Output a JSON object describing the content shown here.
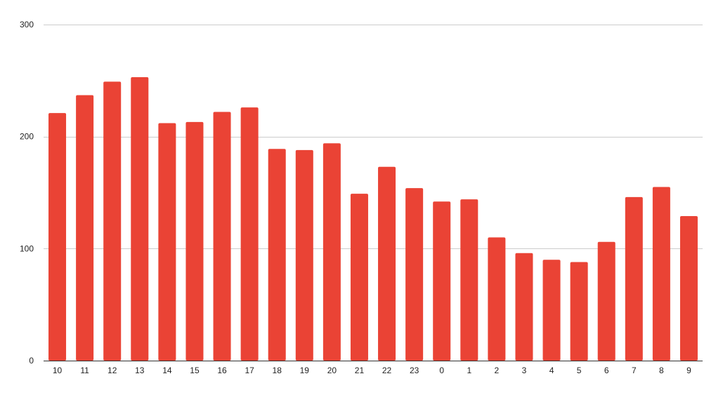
{
  "chart_data": {
    "type": "bar",
    "title": "",
    "xlabel": "",
    "ylabel": "",
    "categories": [
      "10",
      "11",
      "12",
      "13",
      "14",
      "15",
      "16",
      "17",
      "18",
      "19",
      "20",
      "21",
      "22",
      "23",
      "0",
      "1",
      "2",
      "3",
      "4",
      "5",
      "6",
      "7",
      "8",
      "9"
    ],
    "values": [
      221,
      237,
      249,
      253,
      212,
      213,
      222,
      226,
      189,
      188,
      194,
      149,
      173,
      154,
      142,
      144,
      110,
      96,
      90,
      88,
      106,
      146,
      155,
      129
    ],
    "ylim": [
      0,
      300
    ],
    "yticks": [
      "0",
      "100",
      "200",
      "300"
    ],
    "grid": true,
    "legend": "none",
    "bar_color": "#ea4335"
  }
}
